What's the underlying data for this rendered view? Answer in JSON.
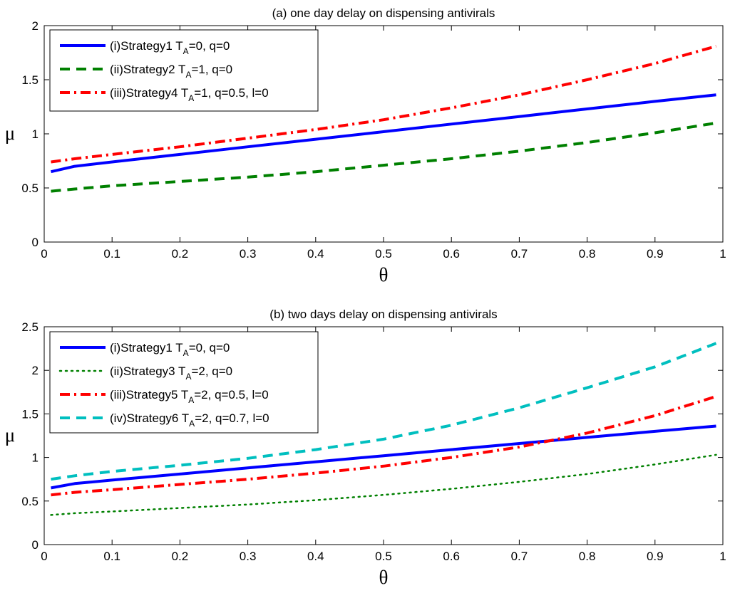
{
  "chart_data": [
    {
      "type": "line",
      "title": "(a) one day delay on dispensing antivirals",
      "xlabel": "θ",
      "ylabel": "μ",
      "xlim": [
        0,
        1
      ],
      "ylim": [
        0,
        2
      ],
      "xticks": [
        "0",
        "0.1",
        "0.2",
        "0.3",
        "0.4",
        "0.5",
        "0.6",
        "0.7",
        "0.8",
        "0.9",
        "1"
      ],
      "yticks": [
        "0",
        "0.5",
        "1",
        "1.5",
        "2"
      ],
      "grid": false,
      "legend_position": "top-left",
      "x": [
        0.01,
        0.045,
        0.1,
        0.2,
        0.3,
        0.4,
        0.5,
        0.6,
        0.7,
        0.8,
        0.9,
        0.99
      ],
      "series": [
        {
          "name": "(i)Strategy1  T_A=0, q=0",
          "legend_main": "(i)Strategy1  T",
          "legend_sub": "A",
          "legend_rest": "=0, q=0",
          "color": "#0000ff",
          "style": "solid",
          "values": [
            0.65,
            0.7,
            0.74,
            0.81,
            0.88,
            0.95,
            1.02,
            1.09,
            1.16,
            1.23,
            1.3,
            1.36
          ]
        },
        {
          "name": "(ii)Strategy2  T_A=1, q=0",
          "legend_main": "(ii)Strategy2  T",
          "legend_sub": "A",
          "legend_rest": "=1, q=0",
          "color": "#008000",
          "style": "dashed",
          "values": [
            0.47,
            0.49,
            0.52,
            0.56,
            0.6,
            0.65,
            0.71,
            0.77,
            0.84,
            0.92,
            1.01,
            1.1
          ]
        },
        {
          "name": "(iii)Strategy4  T_A=1, q=0.5, l=0",
          "legend_main": "(iii)Strategy4  T",
          "legend_sub": "A",
          "legend_rest": "=1, q=0.5, l=0",
          "color": "#ff0000",
          "style": "dashdot",
          "values": [
            0.74,
            0.77,
            0.81,
            0.88,
            0.96,
            1.04,
            1.13,
            1.24,
            1.36,
            1.5,
            1.65,
            1.81
          ]
        }
      ]
    },
    {
      "type": "line",
      "title": "(b) two days delay on dispensing antivirals",
      "xlabel": "θ",
      "ylabel": "μ",
      "xlim": [
        0,
        1
      ],
      "ylim": [
        0,
        2.5
      ],
      "xticks": [
        "0",
        "0.1",
        "0.2",
        "0.3",
        "0.4",
        "0.5",
        "0.6",
        "0.7",
        "0.8",
        "0.9",
        "1"
      ],
      "yticks": [
        "0",
        "0.5",
        "1",
        "1.5",
        "2",
        "2.5"
      ],
      "grid": false,
      "legend_position": "top-left",
      "x": [
        0.01,
        0.045,
        0.1,
        0.2,
        0.3,
        0.4,
        0.5,
        0.6,
        0.7,
        0.8,
        0.9,
        0.99
      ],
      "series": [
        {
          "name": "(i)Strategy1  T_A=0, q=0",
          "legend_main": "(i)Strategy1  T",
          "legend_sub": "A",
          "legend_rest": "=0, q=0",
          "color": "#0000ff",
          "style": "solid",
          "values": [
            0.65,
            0.7,
            0.74,
            0.81,
            0.88,
            0.95,
            1.02,
            1.09,
            1.16,
            1.23,
            1.3,
            1.36
          ]
        },
        {
          "name": "(ii)Strategy3  T_A=2, q=0",
          "legend_main": "(ii)Strategy3  T",
          "legend_sub": "A",
          "legend_rest": "=2, q=0",
          "color": "#008000",
          "style": "dotted",
          "values": [
            0.34,
            0.36,
            0.38,
            0.42,
            0.46,
            0.51,
            0.57,
            0.64,
            0.72,
            0.81,
            0.92,
            1.03
          ]
        },
        {
          "name": "(iii)Strategy5  T_A=2, q=0.5, l=0",
          "legend_main": "(iii)Strategy5  T",
          "legend_sub": "A",
          "legend_rest": "=2, q=0.5, l=0",
          "color": "#ff0000",
          "style": "dashdot",
          "values": [
            0.57,
            0.6,
            0.63,
            0.69,
            0.75,
            0.82,
            0.9,
            1.0,
            1.12,
            1.28,
            1.48,
            1.7
          ]
        },
        {
          "name": "(iv)Strategy6  T_A=2, q=0.7, l=0",
          "legend_main": "(iv)Strategy6  T",
          "legend_sub": "A",
          "legend_rest": "=2, q=0.7, l=0",
          "color": "#00bfbf",
          "style": "dashed",
          "values": [
            0.75,
            0.79,
            0.84,
            0.91,
            0.99,
            1.09,
            1.21,
            1.37,
            1.57,
            1.8,
            2.04,
            2.31
          ]
        }
      ]
    }
  ]
}
